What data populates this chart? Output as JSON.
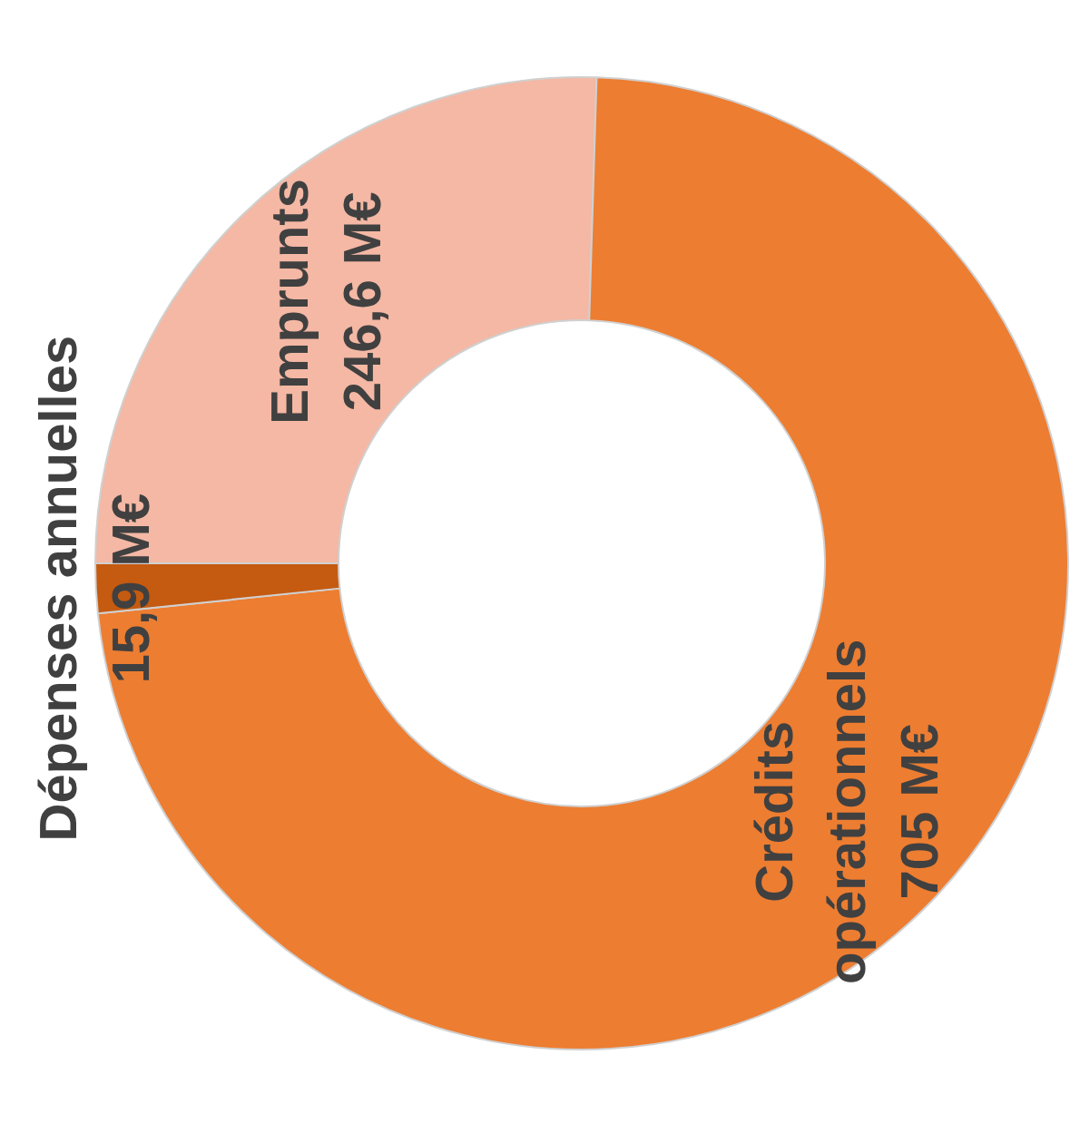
{
  "chart_data": {
    "type": "donut",
    "categories": [
      "Emprunts",
      "Crédits opérationnels",
      "Dépenses annuelles"
    ],
    "values": [
      246.6,
      705,
      15.9
    ],
    "colors": [
      "#f4b8a4",
      "#ed7d31",
      "#c55a11"
    ],
    "value_labels": [
      "246,6 M€",
      "705 M€",
      "15,9 M€"
    ]
  }
}
